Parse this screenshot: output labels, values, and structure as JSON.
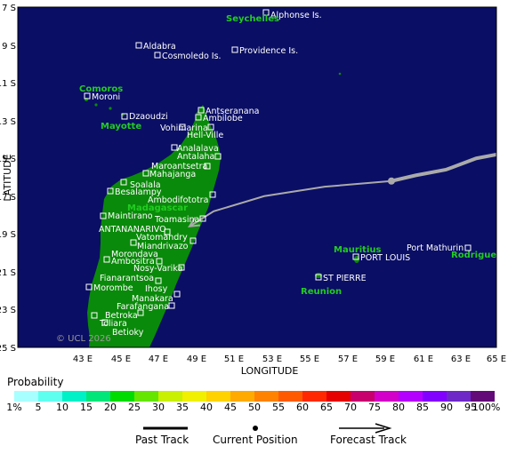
{
  "axes": {
    "y_title": "LATITUDE",
    "x_title": "LONGITUDE",
    "lat_labels": [
      "7 S",
      "9 S",
      "11 S",
      "13 S",
      "15 S",
      "17 S",
      "19 S",
      "21 S",
      "23 S",
      "25 S"
    ],
    "lon_labels": [
      "43 E",
      "45 E",
      "47 E",
      "49 E",
      "51 E",
      "53 E",
      "55 E",
      "57 E",
      "59 E",
      "61 E",
      "63 E",
      "65 E"
    ]
  },
  "regions": {
    "seychelles": "Seychelles",
    "comoros": "Comoros",
    "mayotte": "Mayotte",
    "madagascar": "Madagascar",
    "mauritius": "Mauritius",
    "reunion": "Reunion",
    "rodrigue": "Rodrigue"
  },
  "places": {
    "alphonse": "Alphonse Is.",
    "aldabra": "Aldabra",
    "providence": "Providence Is.",
    "cosmoledo": "Cosmoledo Is.",
    "moroni": "Moroni",
    "dzaoudzi": "Dzaoudzi",
    "antseranana": "Antseranana",
    "ambilobe": "Ambilobe",
    "vohimarina": "Vohimarina",
    "hellville": "Hell-Ville",
    "analalava": "Analalava",
    "antalaha": "Antalaha",
    "maroantsetra": "Maroantsetra",
    "mahajanga": "Mahajanga",
    "soalala": "Soalala",
    "besalampy": "Besalampy",
    "ambodifototra": "Ambodifototra",
    "maintirano": "Maintirano",
    "toamasina": "Toamasina",
    "antananarivo": "ANTANANARIVO",
    "vatomandry": "Vatomandry",
    "miandrivazo": "Miandrivazo",
    "morondava": "Morondava",
    "ambositra": "Ambositra",
    "nosyvarika": "Nosy-Varika",
    "fianarantsoa": "Fianarantsoa",
    "morombe": "Morombe",
    "ihosy": "Ihosy",
    "manakara": "Manakara",
    "farafangana": "Farafangana",
    "betroka": "Betroka",
    "toliara": "Toliara",
    "betioky": "Betioky",
    "portmathurin": "Port Mathurin",
    "portlouis": "PORT LOUIS",
    "stpierre": "ST PIERRE"
  },
  "copyright": "© UCL 2026",
  "track": {
    "current_position": {
      "lon": 59.8,
      "lat": -16.2
    },
    "past_track": [
      {
        "lon": 66.0,
        "lat": -14.8
      },
      {
        "lon": 64.0,
        "lat": -15.0
      },
      {
        "lon": 62.5,
        "lat": -15.6
      },
      {
        "lon": 61.0,
        "lat": -15.9
      },
      {
        "lon": 59.8,
        "lat": -16.2
      }
    ],
    "forecast_track": [
      {
        "lon": 59.8,
        "lat": -16.2
      },
      {
        "lon": 56.5,
        "lat": -16.5
      },
      {
        "lon": 53.5,
        "lat": -17.0
      },
      {
        "lon": 51.0,
        "lat": -17.8
      },
      {
        "lon": 49.8,
        "lat": -18.6
      }
    ]
  },
  "legend": {
    "title": "Probability",
    "tick_labels": [
      "1%",
      "5",
      "10",
      "15",
      "20",
      "25",
      "30",
      "35",
      "40",
      "45",
      "50",
      "55",
      "60",
      "65",
      "70",
      "75",
      "80",
      "85",
      "90",
      "95",
      "100%"
    ],
    "colors": [
      "#a8ffff",
      "#5effef",
      "#00f0c8",
      "#00e678",
      "#00dc00",
      "#64e600",
      "#c8f000",
      "#f0f000",
      "#ffd200",
      "#ffaa00",
      "#ff8200",
      "#ff5a00",
      "#ff2800",
      "#e60000",
      "#c8006e",
      "#d200c8",
      "#b400ff",
      "#8200ff",
      "#6e28c8",
      "#640a78"
    ],
    "past_track_label": "Past Track",
    "current_position_label": "Current Position",
    "forecast_track_label": "Forecast Track"
  },
  "colors": {
    "ocean": "#0a0e64",
    "land": "#0a8a0a",
    "track": "#aaaaaa"
  }
}
